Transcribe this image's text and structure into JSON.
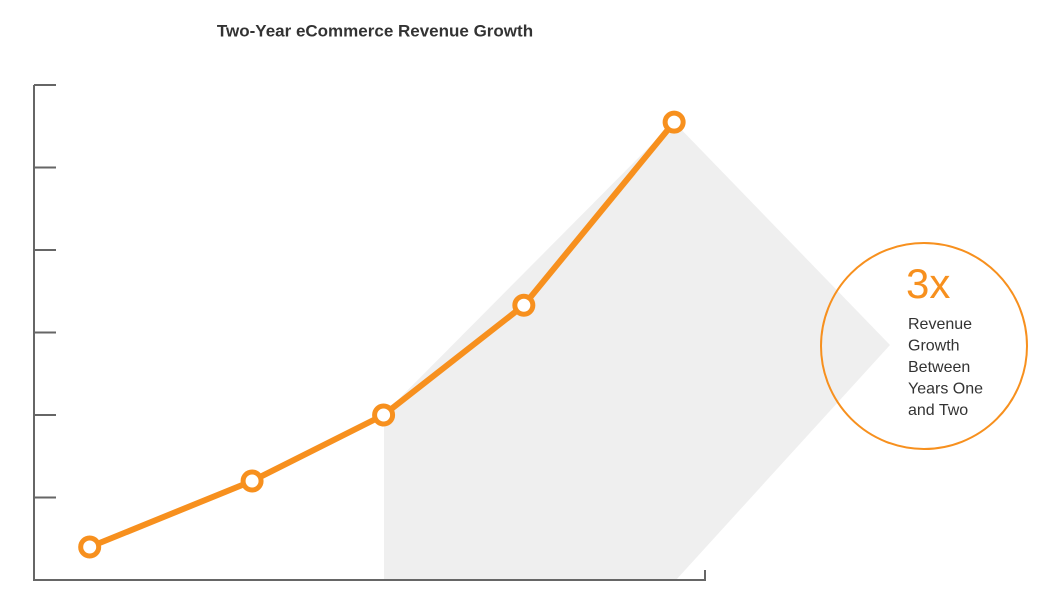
{
  "chart_data": {
    "type": "line",
    "title": "Two-Year eCommerce Revenue Growth",
    "x": [
      0.83,
      3.25,
      5.21,
      7.3,
      9.54
    ],
    "series": [
      {
        "color": "#f7901e",
        "values": [
          0.4,
          1.2,
          2.0,
          3.33,
          5.55
        ]
      }
    ],
    "xlim": [
      0,
      10
    ],
    "ylim": [
      0,
      6
    ],
    "yticks": [
      0,
      1,
      2,
      3,
      4,
      5,
      6
    ],
    "annotation": {
      "headline": "3x",
      "lines": [
        "Revenue",
        "Growth",
        "Between",
        "Years One",
        "and Two"
      ]
    }
  }
}
